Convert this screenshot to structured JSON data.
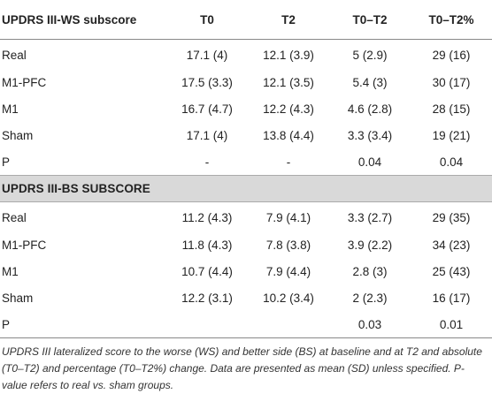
{
  "header": {
    "col0": "UPDRS III-WS subscore",
    "col1": "T0",
    "col2": "T2",
    "col3": "T0–T2",
    "col4": "T0–T2%"
  },
  "ws_rows": [
    [
      "Real",
      "17.1 (4)",
      "12.1 (3.9)",
      "5 (2.9)",
      "29 (16)"
    ],
    [
      "M1-PFC",
      "17.5 (3.3)",
      "12.1 (3.5)",
      "5.4 (3)",
      "30 (17)"
    ],
    [
      "M1",
      "16.7 (4.7)",
      "12.2 (4.3)",
      "4.6 (2.8)",
      "28 (15)"
    ],
    [
      "Sham",
      "17.1 (4)",
      "13.8 (4.4)",
      "3.3 (3.4)",
      "19 (21)"
    ],
    [
      "P",
      "-",
      "-",
      "0.04",
      "0.04"
    ]
  ],
  "bs_section_title": "UPDRS III-BS SUBSCORE",
  "bs_rows": [
    [
      "Real",
      "11.2 (4.3)",
      "7.9 (4.1)",
      "3.3 (2.7)",
      "29 (35)"
    ],
    [
      "M1-PFC",
      "11.8 (4.3)",
      "7.8 (3.8)",
      "3.9 (2.2)",
      "34 (23)"
    ],
    [
      "M1",
      "10.7 (4.4)",
      "7.9 (4.4)",
      "2.8 (3)",
      "25 (43)"
    ],
    [
      "Sham",
      "12.2 (3.1)",
      "10.2 (3.4)",
      "2 (2.3)",
      "16 (17)"
    ],
    [
      "P",
      "",
      "",
      "0.03",
      "0.01"
    ]
  ],
  "footnote": "UPDRS III lateralized score to the worse (WS) and better side (BS) at baseline and at T2 and absolute (T0–T2) and percentage (T0–T2%) change. Data are presented as mean (SD) unless specified. P-value refers to real vs. sham groups."
}
